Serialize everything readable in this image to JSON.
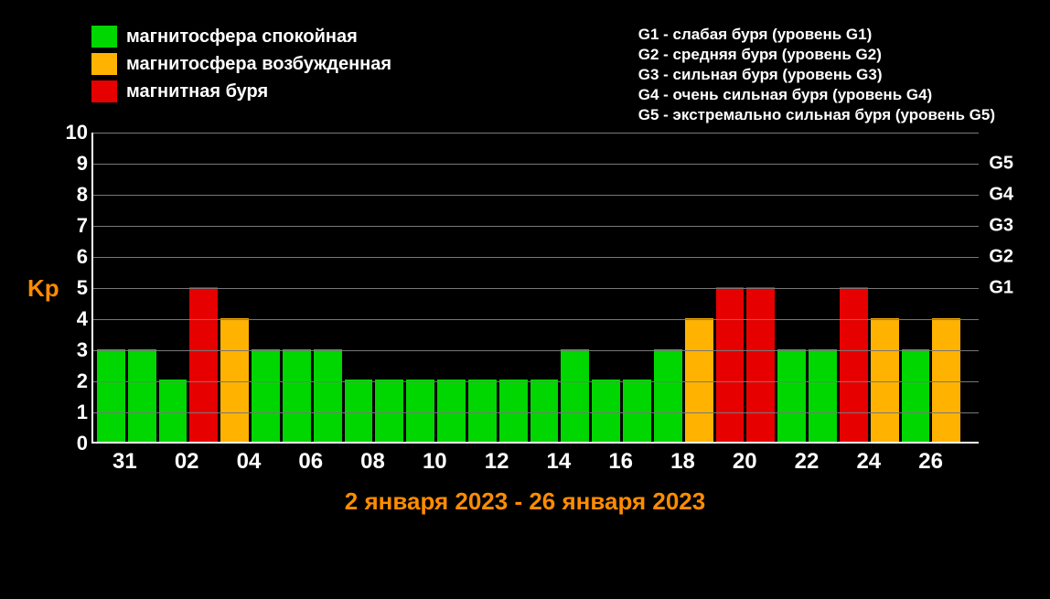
{
  "chart": {
    "type": "bar",
    "background_color": "#000000",
    "y_axis_label": "Kp",
    "y_axis_label_color": "#ff8c00",
    "axis_color": "#ffffff",
    "grid_color": "#787878",
    "text_color": "#ffffff",
    "title_fontsize": 26,
    "tick_fontsize": 22,
    "ylim": [
      0,
      10
    ],
    "y_ticks": [
      0,
      1,
      2,
      3,
      4,
      5,
      6,
      7,
      8,
      9,
      10
    ],
    "g_levels": [
      {
        "label": "G1",
        "y": 5
      },
      {
        "label": "G2",
        "y": 6
      },
      {
        "label": "G3",
        "y": 7
      },
      {
        "label": "G4",
        "y": 8
      },
      {
        "label": "G5",
        "y": 9
      }
    ],
    "date_range": "2 января 2023 - 26 января 2023",
    "date_range_color": "#ff8c00",
    "x_tick_labels": [
      "31",
      "02",
      "04",
      "06",
      "08",
      "10",
      "12",
      "14",
      "16",
      "18",
      "20",
      "22",
      "24",
      "26"
    ],
    "colors": {
      "calm": "#00d600",
      "excited": "#ffb300",
      "storm": "#e60000"
    },
    "legend_left": [
      {
        "color": "#00d600",
        "label": "магнитосфера спокойная"
      },
      {
        "color": "#ffb300",
        "label": "магнитосфера возбужденная"
      },
      {
        "color": "#e60000",
        "label": "магнитная буря"
      }
    ],
    "legend_right": [
      "G1 - слабая буря (уровень G1)",
      "G2 - средняя буря (уровень G2)",
      "G3 - сильная буря (уровень G3)",
      "G4 - очень сильная буря (уровень G4)",
      "G5 - экстремально сильная буря (уровень G5)"
    ],
    "bars": [
      {
        "value": 3,
        "state": "calm"
      },
      {
        "value": 3,
        "state": "calm"
      },
      {
        "value": 2,
        "state": "calm"
      },
      {
        "value": 5,
        "state": "storm"
      },
      {
        "value": 4,
        "state": "excited"
      },
      {
        "value": 3,
        "state": "calm"
      },
      {
        "value": 3,
        "state": "calm"
      },
      {
        "value": 3,
        "state": "calm"
      },
      {
        "value": 2,
        "state": "calm"
      },
      {
        "value": 2,
        "state": "calm"
      },
      {
        "value": 2,
        "state": "calm"
      },
      {
        "value": 2,
        "state": "calm"
      },
      {
        "value": 2,
        "state": "calm"
      },
      {
        "value": 2,
        "state": "calm"
      },
      {
        "value": 2,
        "state": "calm"
      },
      {
        "value": 3,
        "state": "calm"
      },
      {
        "value": 2,
        "state": "calm"
      },
      {
        "value": 2,
        "state": "calm"
      },
      {
        "value": 3,
        "state": "calm"
      },
      {
        "value": 4,
        "state": "excited"
      },
      {
        "value": 5,
        "state": "storm"
      },
      {
        "value": 5,
        "state": "storm"
      },
      {
        "value": 3,
        "state": "calm"
      },
      {
        "value": 3,
        "state": "calm"
      },
      {
        "value": 5,
        "state": "storm"
      },
      {
        "value": 4,
        "state": "excited"
      },
      {
        "value": 3,
        "state": "calm"
      },
      {
        "value": 4,
        "state": "excited"
      }
    ]
  }
}
